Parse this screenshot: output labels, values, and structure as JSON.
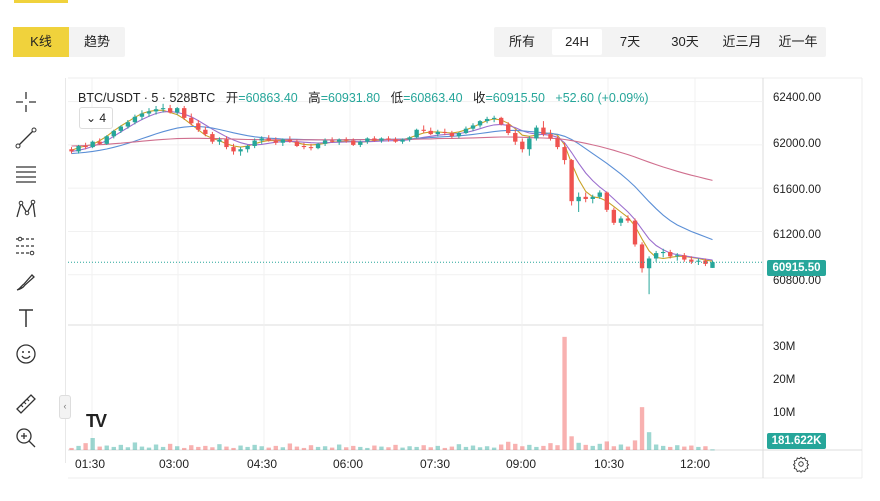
{
  "view_toggle": {
    "kline": "K线",
    "trend": "趋势"
  },
  "range_tabs": [
    "所有",
    "24H",
    "7天",
    "30天",
    "近三月",
    "近一年"
  ],
  "legend": {
    "symbol": "BTC/USDT · 5 · 528BTC",
    "open_label": "开",
    "open": "=60863.40",
    "high_label": "高",
    "high": "=60931.80",
    "low_label": "低",
    "low": "=60863.40",
    "close_label": "收",
    "close": "=60915.50",
    "change": "+52.60 (+0.09%)"
  },
  "indicator_toggle": "4",
  "price_axis": [
    "62400.00",
    "62000.00",
    "61600.00",
    "61200.00",
    "60800.00"
  ],
  "volume_axis": [
    "30M",
    "20M",
    "10M"
  ],
  "time_axis": [
    "01:30",
    "03:00",
    "04:30",
    "06:00",
    "07:30",
    "09:00",
    "10:30",
    "12:00"
  ],
  "last_price": "60915.50",
  "last_volume": "181.622K",
  "colors": {
    "up": "#26a69a",
    "down": "#ef5350",
    "accent": "#f0d23c"
  },
  "tools": [
    "crosshair-icon",
    "trendline-icon",
    "horizontal-lines-icon",
    "pattern-icon",
    "fibonacci-icon",
    "brush-icon",
    "text-icon",
    "emoji-icon",
    "ruler-icon",
    "zoom-in-icon"
  ],
  "chart_data": {
    "type": "candlestick",
    "y_range": [
      60400,
      62600
    ],
    "candles": [
      [
        61960,
        61980,
        61920,
        61940
      ],
      [
        61940,
        62000,
        61920,
        61990
      ],
      [
        61990,
        62020,
        61960,
        61980
      ],
      [
        61980,
        62040,
        61970,
        62030
      ],
      [
        62030,
        62060,
        62000,
        62010
      ],
      [
        62010,
        62090,
        62000,
        62080
      ],
      [
        62080,
        62140,
        62060,
        62130
      ],
      [
        62130,
        62180,
        62110,
        62170
      ],
      [
        62170,
        62230,
        62150,
        62210
      ],
      [
        62210,
        62280,
        62190,
        62260
      ],
      [
        62260,
        62320,
        62230,
        62290
      ],
      [
        62290,
        62340,
        62260,
        62310
      ],
      [
        62310,
        62360,
        62280,
        62330
      ],
      [
        62330,
        62380,
        62300,
        62340
      ],
      [
        62340,
        62370,
        62290,
        62300
      ],
      [
        62300,
        62350,
        62280,
        62340
      ],
      [
        62340,
        62360,
        62230,
        62250
      ],
      [
        62250,
        62290,
        62180,
        62200
      ],
      [
        62200,
        62230,
        62120,
        62140
      ],
      [
        62140,
        62170,
        62080,
        62100
      ],
      [
        62100,
        62120,
        62010,
        62030
      ],
      [
        62030,
        62070,
        62000,
        62050
      ],
      [
        62050,
        62080,
        61960,
        61980
      ],
      [
        61980,
        62010,
        61910,
        61940
      ],
      [
        61940,
        61980,
        61900,
        61960
      ],
      [
        61960,
        62000,
        61930,
        61990
      ],
      [
        61990,
        62060,
        61970,
        62040
      ],
      [
        62040,
        62080,
        62010,
        62060
      ],
      [
        62060,
        62090,
        62030,
        62040
      ],
      [
        62040,
        62070,
        62000,
        62020
      ],
      [
        62020,
        62060,
        61990,
        62050
      ],
      [
        62050,
        62080,
        62020,
        62030
      ],
      [
        62030,
        62050,
        61980,
        61990
      ],
      [
        61990,
        62020,
        61960,
        61980
      ],
      [
        61980,
        62010,
        61950,
        61970
      ],
      [
        61970,
        62020,
        61960,
        62010
      ],
      [
        62010,
        62060,
        61990,
        62040
      ],
      [
        62040,
        62070,
        62020,
        62030
      ],
      [
        62030,
        62060,
        62000,
        62050
      ],
      [
        62050,
        62070,
        62020,
        62040
      ],
      [
        62040,
        62060,
        61990,
        62000
      ],
      [
        62000,
        62040,
        61980,
        62030
      ],
      [
        62030,
        62070,
        62010,
        62060
      ],
      [
        62060,
        62080,
        62030,
        62040
      ],
      [
        62040,
        62070,
        62020,
        62060
      ],
      [
        62060,
        62080,
        62030,
        62050
      ],
      [
        62050,
        62070,
        62020,
        62030
      ],
      [
        62030,
        62060,
        62010,
        62050
      ],
      [
        62050,
        62080,
        62030,
        62070
      ],
      [
        62070,
        62150,
        62060,
        62140
      ],
      [
        62140,
        62180,
        62110,
        62130
      ],
      [
        62130,
        62160,
        62090,
        62100
      ],
      [
        62100,
        62140,
        62080,
        62120
      ],
      [
        62120,
        62150,
        62090,
        62110
      ],
      [
        62110,
        62130,
        62060,
        62080
      ],
      [
        62080,
        62120,
        62060,
        62110
      ],
      [
        62110,
        62170,
        62100,
        62150
      ],
      [
        62150,
        62200,
        62130,
        62180
      ],
      [
        62180,
        62230,
        62160,
        62220
      ],
      [
        62220,
        62260,
        62200,
        62240
      ],
      [
        62240,
        62270,
        62210,
        62250
      ],
      [
        62250,
        62260,
        62180,
        62190
      ],
      [
        62190,
        62210,
        62090,
        62110
      ],
      [
        62110,
        62140,
        62000,
        62030
      ],
      [
        62030,
        62060,
        61930,
        61960
      ],
      [
        61960,
        62080,
        61900,
        62060
      ],
      [
        62060,
        62180,
        62040,
        62160
      ],
      [
        62160,
        62220,
        62080,
        62100
      ],
      [
        62100,
        62140,
        62040,
        62060
      ],
      [
        62060,
        62080,
        61960,
        61980
      ],
      [
        61980,
        62020,
        61820,
        61860
      ],
      [
        61860,
        61870,
        61440,
        61480
      ],
      [
        61480,
        61560,
        61380,
        61520
      ],
      [
        61520,
        61560,
        61470,
        61500
      ],
      [
        61500,
        61540,
        61460,
        61520
      ],
      [
        61520,
        61580,
        61500,
        61560
      ],
      [
        61560,
        61570,
        61380,
        61400
      ],
      [
        61400,
        61420,
        61260,
        61280
      ],
      [
        61280,
        61340,
        61250,
        61320
      ],
      [
        61320,
        61350,
        61280,
        61300
      ],
      [
        61300,
        61320,
        61060,
        61080
      ],
      [
        61080,
        61100,
        60820,
        60860
      ],
      [
        60860,
        60970,
        60620,
        60950
      ],
      [
        60950,
        61020,
        60920,
        61000
      ],
      [
        61000,
        61040,
        60960,
        61010
      ],
      [
        61010,
        61030,
        60950,
        60970
      ],
      [
        60970,
        61000,
        60930,
        60980
      ],
      [
        60980,
        61000,
        60920,
        60940
      ],
      [
        60940,
        60970,
        60900,
        60920
      ],
      [
        60920,
        60950,
        60890,
        60930
      ],
      [
        60930,
        60950,
        60880,
        60900
      ],
      [
        60863,
        60932,
        60863,
        60916
      ]
    ],
    "volume_millions": [
      0.6,
      1.2,
      2.0,
      3.5,
      1.0,
      1.3,
      0.9,
      1.5,
      0.8,
      2.2,
      1.0,
      0.7,
      1.6,
      0.9,
      1.8,
      1.1,
      0.6,
      1.4,
      0.9,
      1.2,
      0.8,
      1.7,
      1.0,
      0.6,
      1.3,
      0.9,
      1.5,
      1.1,
      0.7,
      1.2,
      0.8,
      1.9,
      1.0,
      0.6,
      1.4,
      0.9,
      1.1,
      0.7,
      1.6,
      0.8,
      1.2,
      0.9,
      0.6,
      1.3,
      1.0,
      0.8,
      1.5,
      0.7,
      1.1,
      0.9,
      1.4,
      0.8,
      1.2,
      0.6,
      1.0,
      1.7,
      0.9,
      1.3,
      0.8,
      1.1,
      0.7,
      1.6,
      2.4,
      1.8,
      1.1,
      1.5,
      0.9,
      1.2,
      2.0,
      1.4,
      33.0,
      4.0,
      2.1,
      1.5,
      1.2,
      1.8,
      2.5,
      1.1,
      1.6,
      1.0,
      2.8,
      12.5,
      5.2,
      1.6,
      1.2,
      0.9,
      1.4,
      1.0,
      1.3,
      0.9,
      1.1,
      0.18
    ],
    "ma_series": [
      {
        "color": "#c9a227",
        "values": [
          61950,
          61975,
          61990,
          62005,
          62040,
          62080,
          62130,
          62175,
          62215,
          62255,
          62290,
          62310,
          62320,
          62320,
          62300,
          62280,
          62240,
          62190,
          62140,
          62090,
          62060,
          62040,
          62010,
          61990,
          61980,
          61990,
          62010,
          62030,
          62040,
          62040,
          62040,
          62035,
          62020,
          62005,
          62000,
          62005,
          62015,
          62025,
          62030,
          62035,
          62030,
          62025,
          62030,
          62040,
          62045,
          62050,
          62050,
          62050,
          62065,
          62090,
          62110,
          62120,
          62120,
          62115,
          62110,
          62120,
          62140,
          62165,
          62195,
          62225,
          62240,
          62230,
          62200,
          62150,
          62090,
          62080,
          62090,
          62100,
          62110,
          62090,
          62000,
          61830,
          61680,
          61570,
          61520,
          61510,
          61480,
          61430,
          61380,
          61330,
          61250,
          61130,
          61020,
          60960,
          60950,
          60960,
          60970,
          60970,
          60960,
          60950,
          60935,
          60925
        ]
      },
      {
        "color": "#9c6fce",
        "values": [
          61940,
          61950,
          61965,
          61985,
          62010,
          62040,
          62080,
          62120,
          62160,
          62200,
          62235,
          62265,
          62290,
          62305,
          62310,
          62300,
          62285,
          62260,
          62225,
          62185,
          62145,
          62110,
          62075,
          62045,
          62020,
          62005,
          62000,
          62005,
          62015,
          62025,
          62030,
          62032,
          62030,
          62025,
          62020,
          62018,
          62020,
          62022,
          62025,
          62028,
          62030,
          62030,
          62030,
          62032,
          62035,
          62038,
          62040,
          62042,
          62048,
          62058,
          62070,
          62080,
          62090,
          62095,
          62100,
          62105,
          62115,
          62130,
          62150,
          62170,
          62185,
          62190,
          62180,
          62160,
          62130,
          62110,
          62100,
          62095,
          62090,
          62070,
          62020,
          61930,
          61830,
          61740,
          61670,
          61610,
          61560,
          61500,
          61440,
          61380,
          61310,
          61220,
          61130,
          61070,
          61030,
          61000,
          60985,
          60975,
          60965,
          60955,
          60945,
          60935
        ]
      },
      {
        "color": "#5b8fd6",
        "values": [
          61920,
          61925,
          61932,
          61940,
          61950,
          61962,
          61978,
          61995,
          62015,
          62035,
          62058,
          62080,
          62102,
          62122,
          62140,
          62155,
          62165,
          62170,
          62170,
          62165,
          62155,
          62142,
          62128,
          62112,
          62098,
          62085,
          62075,
          62068,
          62062,
          62058,
          62055,
          62053,
          62052,
          62050,
          62048,
          62046,
          62045,
          62045,
          62046,
          62047,
          62048,
          62049,
          62050,
          62050,
          62051,
          62052,
          62053,
          62054,
          62056,
          62060,
          62064,
          62068,
          62072,
          62076,
          62080,
          62084,
          62090,
          62097,
          62105,
          62114,
          62123,
          62130,
          62134,
          62134,
          62130,
          62124,
          62118,
          62112,
          62106,
          62098,
          62080,
          62050,
          62010,
          61965,
          61920,
          61875,
          61830,
          61780,
          61730,
          61675,
          61615,
          61545,
          61475,
          61410,
          61350,
          61300,
          61260,
          61230,
          61200,
          61175,
          61150,
          61125
        ]
      },
      {
        "color": "#d06f8e",
        "values": [
          61990,
          61992,
          61995,
          61998,
          62002,
          62006,
          62011,
          62016,
          62022,
          62028,
          62034,
          62040,
          62046,
          62051,
          62055,
          62058,
          62060,
          62061,
          62061,
          62060,
          62059,
          62058,
          62056,
          62054,
          62052,
          62050,
          62049,
          62048,
          62047,
          62047,
          62047,
          62047,
          62047,
          62047,
          62047,
          62047,
          62047,
          62047,
          62047,
          62048,
          62048,
          62048,
          62049,
          62049,
          62050,
          62050,
          62051,
          62051,
          62052,
          62053,
          62055,
          62056,
          62058,
          62059,
          62060,
          62061,
          62063,
          62065,
          62067,
          62069,
          62071,
          62073,
          62073,
          62072,
          62070,
          62068,
          62066,
          62064,
          62061,
          62058,
          62050,
          62040,
          62028,
          62015,
          62000,
          61985,
          61968,
          61950,
          61930,
          61910,
          61888,
          61864,
          61840,
          61818,
          61796,
          61776,
          61756,
          61738,
          61720,
          61704,
          61688,
          61672
        ]
      }
    ]
  }
}
